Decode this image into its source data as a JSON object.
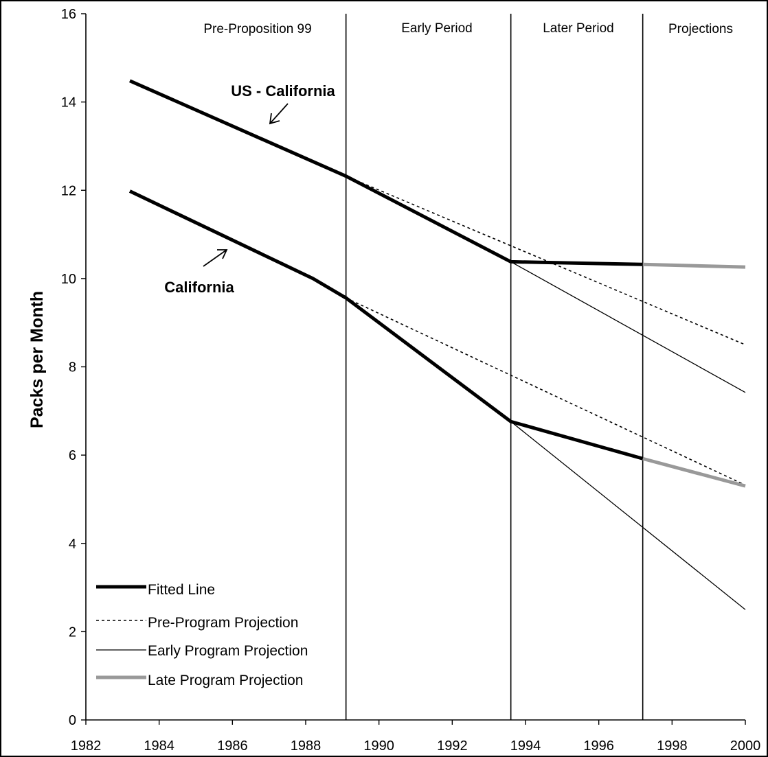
{
  "chart_data": {
    "type": "line",
    "title": "",
    "xlabel": "",
    "ylabel": "Packs per Month",
    "xlim": [
      1982,
      2000
    ],
    "ylim": [
      0,
      16
    ],
    "x_ticks": [
      1982,
      1984,
      1986,
      1988,
      1990,
      1992,
      1994,
      1996,
      1998,
      2000
    ],
    "y_ticks": [
      0,
      2,
      4,
      6,
      8,
      10,
      12,
      14,
      16
    ],
    "grid": false,
    "legend_position": "bottom-left",
    "period_dividers": [
      1989.1,
      1993.6,
      1997.2
    ],
    "period_labels": [
      "Pre-Proposition 99",
      "Early Period",
      "Later Period",
      "Projections"
    ],
    "annotations": [
      {
        "text": "US - California",
        "points_to": "upper curve"
      },
      {
        "text": "California",
        "points_to": "lower curve"
      }
    ],
    "legend": [
      {
        "label": "Fitted Line",
        "style": "fitted"
      },
      {
        "label": "Pre-Program Projection",
        "style": "pre"
      },
      {
        "label": "Early Program Projection",
        "style": "early"
      },
      {
        "label": "Late Program Projection",
        "style": "late"
      }
    ],
    "colors": {
      "fitted": "#000000",
      "pre": "#000000",
      "early": "#000000",
      "late": "#999999"
    },
    "series": [
      {
        "group": "US - California",
        "style": "fitted",
        "x": [
          1983.2,
          1989.1,
          1993.6,
          1997.2
        ],
        "y": [
          14.48,
          12.32,
          10.38,
          10.32
        ]
      },
      {
        "group": "US - California",
        "style": "pre",
        "x": [
          1989.1,
          2000
        ],
        "y": [
          12.32,
          8.5
        ]
      },
      {
        "group": "US - California",
        "style": "early",
        "x": [
          1993.6,
          2000
        ],
        "y": [
          10.38,
          7.42
        ]
      },
      {
        "group": "US - California",
        "style": "late",
        "x": [
          1997.2,
          2000
        ],
        "y": [
          10.32,
          10.26
        ]
      },
      {
        "group": "California",
        "style": "fitted",
        "x": [
          1983.2,
          1988.2,
          1989.1,
          1993.6,
          1997.2
        ],
        "y": [
          11.98,
          10.0,
          9.56,
          6.76,
          5.92
        ]
      },
      {
        "group": "California",
        "style": "pre",
        "x": [
          1989.1,
          2000
        ],
        "y": [
          9.56,
          5.32
        ]
      },
      {
        "group": "California",
        "style": "early",
        "x": [
          1993.6,
          2000
        ],
        "y": [
          6.76,
          2.5
        ]
      },
      {
        "group": "California",
        "style": "late",
        "x": [
          1997.2,
          2000
        ],
        "y": [
          5.92,
          5.3
        ]
      }
    ]
  }
}
